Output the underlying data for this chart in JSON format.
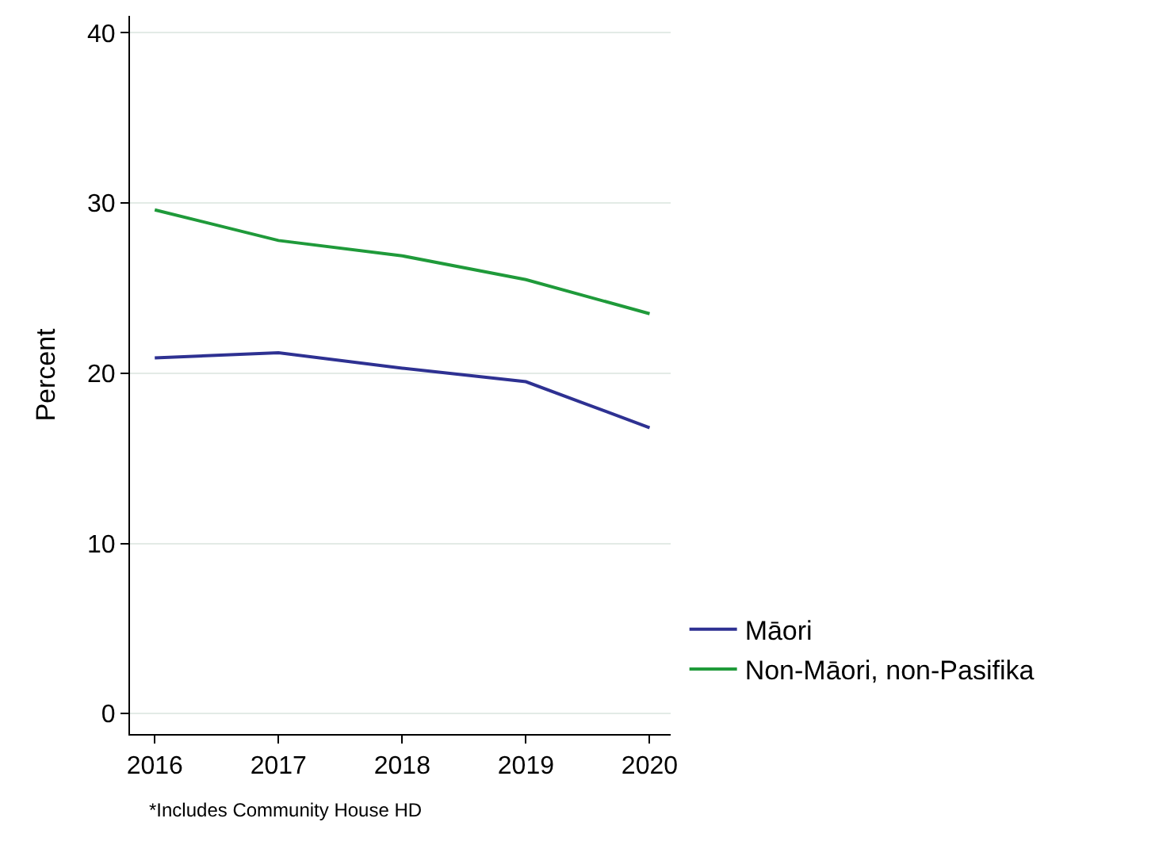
{
  "chart_data": {
    "type": "line",
    "ylabel": "Percent",
    "x": [
      2016,
      2017,
      2018,
      2019,
      2020
    ],
    "series": [
      {
        "name": "Māori",
        "color": "#2e3192",
        "values": [
          20.9,
          21.2,
          20.3,
          19.5,
          16.8
        ]
      },
      {
        "name": "Non-Māori, non-Pasifika",
        "color": "#1f9a3a",
        "values": [
          29.6,
          27.8,
          26.9,
          25.5,
          23.5
        ]
      }
    ],
    "xlim": [
      2015.8,
      2020.17
    ],
    "xticks": [
      2016,
      2017,
      2018,
      2019,
      2020
    ],
    "ylim": [
      -1.2,
      41
    ],
    "yticks": [
      0,
      10,
      20,
      30,
      40
    ],
    "grid": "y",
    "legend": "bottom right",
    "marker": "none",
    "line_style": "solid",
    "annotations": [
      "*Includes Community House HD"
    ]
  }
}
